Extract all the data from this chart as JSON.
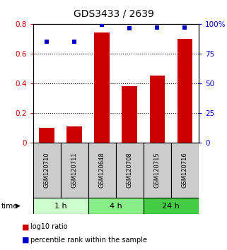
{
  "title": "GDS3433 / 2639",
  "samples": [
    "GSM120710",
    "GSM120711",
    "GSM120648",
    "GSM120708",
    "GSM120715",
    "GSM120716"
  ],
  "log10_ratio": [
    0.1,
    0.11,
    0.74,
    0.38,
    0.45,
    0.7
  ],
  "percentile_rank": [
    85,
    85,
    99,
    96,
    97,
    97
  ],
  "bar_color": "#cc0000",
  "dot_color": "#0000cc",
  "time_groups": [
    {
      "label": "1 h",
      "samples": [
        0,
        1
      ],
      "color": "#ccffcc"
    },
    {
      "label": "4 h",
      "samples": [
        2,
        3
      ],
      "color": "#88ee88"
    },
    {
      "label": "24 h",
      "samples": [
        4,
        5
      ],
      "color": "#44cc44"
    }
  ],
  "ylim_left": [
    0,
    0.8
  ],
  "ylim_right": [
    0,
    100
  ],
  "yticks_left": [
    0,
    0.2,
    0.4,
    0.6,
    0.8
  ],
  "ytick_labels_left": [
    "0",
    "0.2",
    "0.4",
    "0.6",
    "0.8"
  ],
  "yticks_right": [
    0,
    25,
    50,
    75,
    100
  ],
  "ytick_labels_right": [
    "0",
    "25",
    "50",
    "75",
    "100%"
  ],
  "legend_bar_label": "log10 ratio",
  "legend_dot_label": "percentile rank within the sample",
  "time_label": "time",
  "bg_color": "#ffffff",
  "plot_bg_color": "#ffffff",
  "sample_bg_color": "#cccccc"
}
